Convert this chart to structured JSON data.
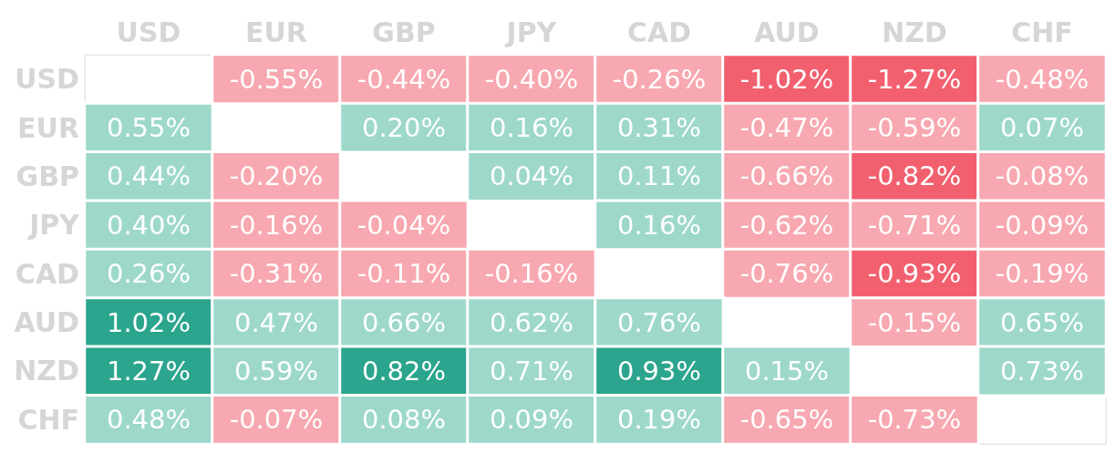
{
  "chart_data": {
    "type": "heatmap",
    "categories": [
      "USD",
      "EUR",
      "GBP",
      "JPY",
      "CAD",
      "AUD",
      "NZD",
      "CHF"
    ],
    "y_categories": [
      "USD",
      "EUR",
      "GBP",
      "JPY",
      "CAD",
      "AUD",
      "NZD",
      "CHF"
    ],
    "cells": [
      [
        null,
        -0.55,
        -0.44,
        -0.4,
        -0.26,
        -1.02,
        -1.27,
        -0.48
      ],
      [
        0.55,
        null,
        0.2,
        0.16,
        0.31,
        -0.47,
        -0.59,
        0.07
      ],
      [
        0.44,
        -0.2,
        null,
        0.04,
        0.11,
        -0.66,
        -0.82,
        -0.08
      ],
      [
        0.4,
        -0.16,
        -0.04,
        null,
        0.16,
        -0.62,
        -0.71,
        -0.09
      ],
      [
        0.26,
        -0.31,
        -0.11,
        -0.16,
        null,
        -0.76,
        -0.93,
        -0.19
      ],
      [
        1.02,
        0.47,
        0.66,
        0.62,
        0.76,
        null,
        -0.15,
        0.65
      ],
      [
        1.27,
        0.59,
        0.82,
        0.71,
        0.93,
        0.15,
        null,
        0.73
      ],
      [
        0.48,
        -0.07,
        0.08,
        0.09,
        0.19,
        -0.65,
        -0.73,
        null
      ]
    ],
    "cell_labels": [
      [
        null,
        "-0.55%",
        "-0.44%",
        "-0.40%",
        "-0.26%",
        "-1.02%",
        "-1.27%",
        "-0.48%"
      ],
      [
        "0.55%",
        null,
        "0.20%",
        "0.16%",
        "0.31%",
        "-0.47%",
        "-0.59%",
        "0.07%"
      ],
      [
        "0.44%",
        "-0.20%",
        null,
        "0.04%",
        "0.11%",
        "-0.66%",
        "-0.82%",
        "-0.08%"
      ],
      [
        "0.40%",
        "-0.16%",
        "-0.04%",
        null,
        "0.16%",
        "-0.62%",
        "-0.71%",
        "-0.09%"
      ],
      [
        "0.26%",
        "-0.31%",
        "-0.11%",
        "-0.16%",
        null,
        "-0.76%",
        "-0.93%",
        "-0.19%"
      ],
      [
        "1.02%",
        "0.47%",
        "0.66%",
        "0.62%",
        "0.76%",
        null,
        "-0.15%",
        "0.65%"
      ],
      [
        "1.27%",
        "0.59%",
        "0.82%",
        "0.71%",
        "0.93%",
        "0.15%",
        null,
        "0.73%"
      ],
      [
        "0.48%",
        "-0.07%",
        "0.08%",
        "0.09%",
        "0.19%",
        "-0.65%",
        "-0.73%",
        null
      ]
    ],
    "colors": [
      [
        null,
        "#f7a8b0",
        "#f7a8b0",
        "#f7a8b0",
        "#f7a8b0",
        "#f2606f",
        "#f2606f",
        "#f7a8b0"
      ],
      [
        "#9dd8cb",
        null,
        "#9dd8cb",
        "#9dd8cb",
        "#9dd8cb",
        "#f7a8b0",
        "#f7a8b0",
        "#9dd8cb"
      ],
      [
        "#9dd8cb",
        "#f7a8b0",
        null,
        "#9dd8cb",
        "#9dd8cb",
        "#f7a8b0",
        "#f2606f",
        "#f7a8b0"
      ],
      [
        "#9dd8cb",
        "#f7a8b0",
        "#f7a8b0",
        null,
        "#9dd8cb",
        "#f7a8b0",
        "#f7a8b0",
        "#f7a8b0"
      ],
      [
        "#9dd8cb",
        "#f7a8b0",
        "#f7a8b0",
        "#f7a8b0",
        null,
        "#f7a8b0",
        "#f2606f",
        "#f7a8b0"
      ],
      [
        "#2ba58d",
        "#9dd8cb",
        "#9dd8cb",
        "#9dd8cb",
        "#9dd8cb",
        null,
        "#f7a8b0",
        "#9dd8cb"
      ],
      [
        "#2ba58d",
        "#9dd8cb",
        "#2ba58d",
        "#9dd8cb",
        "#2ba58d",
        "#9dd8cb",
        null,
        "#9dd8cb"
      ],
      [
        "#9dd8cb",
        "#f7a8b0",
        "#9dd8cb",
        "#9dd8cb",
        "#9dd8cb",
        "#f7a8b0",
        "#f7a8b0",
        null
      ]
    ]
  }
}
